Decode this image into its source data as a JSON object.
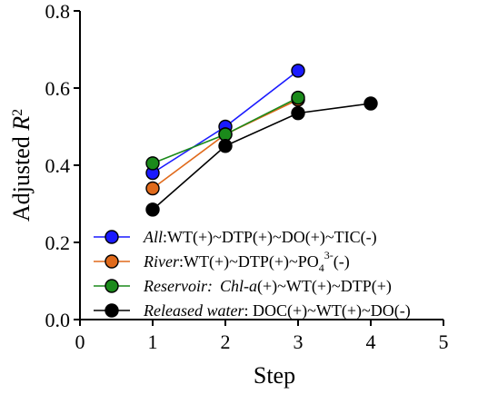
{
  "chart_data": {
    "type": "line",
    "xlabel": "Step",
    "ylabel_main": "Adjusted ",
    "ylabel_italic": "R",
    "ylabel_sup": "2",
    "xlim": [
      0,
      5
    ],
    "ylim": [
      0.0,
      0.8
    ],
    "x_ticks": [
      "0",
      "1",
      "2",
      "3",
      "4",
      "5"
    ],
    "y_ticks": [
      "0.0",
      "0.2",
      "0.4",
      "0.6",
      "0.8"
    ],
    "grid": false,
    "legend_position": "bottom-right",
    "series": [
      {
        "legend_italic": "All",
        "legend_rest": ":WT(+)~DTP(+)~DO(+)~TIC(-)",
        "color": "#1a1aff",
        "x": [
          1,
          2,
          3
        ],
        "y": [
          0.38,
          0.5,
          0.645
        ]
      },
      {
        "legend_italic": "River",
        "legend_rest": ":WT(+)~DTP(+)~PO",
        "legend_sub": "4",
        "legend_sup": "3-",
        "legend_tail": "(-)",
        "color": "#e06a1b",
        "x": [
          1,
          2,
          3
        ],
        "y": [
          0.34,
          0.48,
          0.57
        ]
      },
      {
        "legend_italic": "Reservoir:",
        "legend_italic2": "Chl-a",
        "legend_rest": "(+)~WT(+)~DTP(+)",
        "color": "#1b8a1b",
        "x": [
          1,
          2,
          3
        ],
        "y": [
          0.405,
          0.48,
          0.575
        ]
      },
      {
        "legend_italic": "Released water",
        "legend_rest": ": DOC(+)~WT(+)~DO(-)",
        "color": "#000000",
        "x": [
          1,
          2,
          3,
          4
        ],
        "y": [
          0.285,
          0.45,
          0.535,
          0.56
        ]
      }
    ]
  }
}
